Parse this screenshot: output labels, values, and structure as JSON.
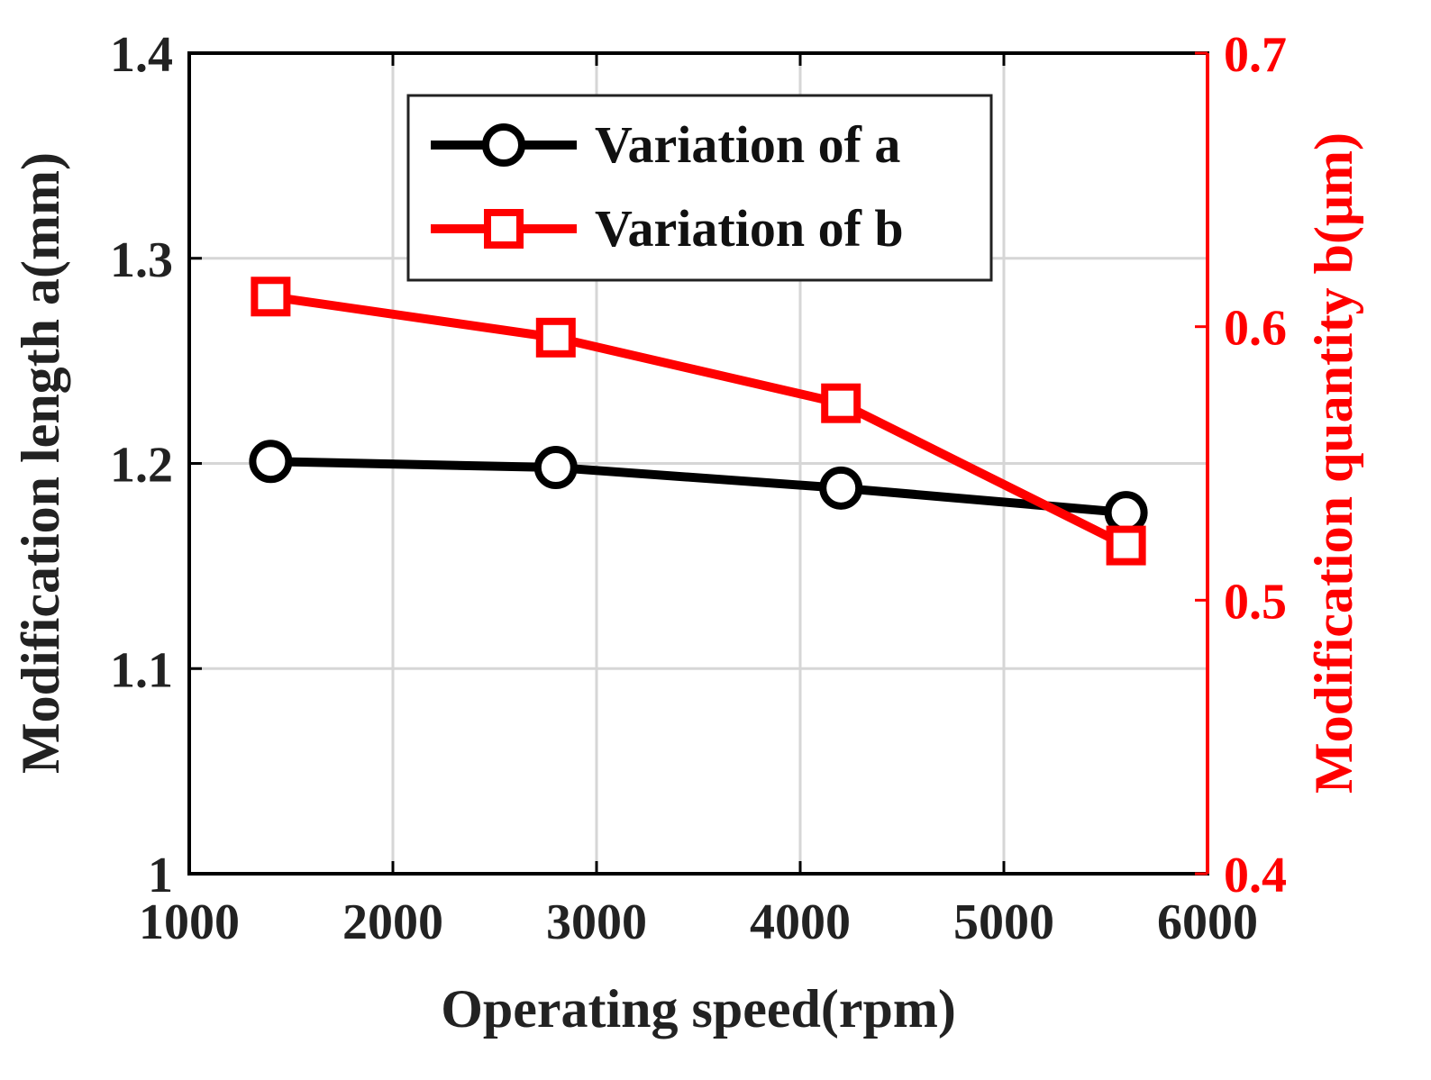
{
  "chart_data": {
    "type": "line",
    "xlabel": "Operating speed(rpm)",
    "ylabel_left": "Modification length a(mm)",
    "ylabel_right": "Modification quantity b(μm)",
    "xlim": [
      1000,
      6000
    ],
    "ylim_left": [
      1,
      1.4
    ],
    "ylim_right": [
      0.4,
      0.7
    ],
    "x_ticks": [
      1000,
      2000,
      3000,
      4000,
      5000,
      6000
    ],
    "x_tick_labels": [
      "1000",
      "2000",
      "3000",
      "4000",
      "5000",
      "6000"
    ],
    "y_left_ticks": [
      1,
      1.1,
      1.2,
      1.3,
      1.4
    ],
    "y_left_tick_labels": [
      "1",
      "1.1",
      "1.2",
      "1.3",
      "1.4"
    ],
    "y_right_ticks": [
      0.4,
      0.5,
      0.6,
      0.7
    ],
    "y_right_tick_labels": [
      "0.4",
      "0.5",
      "0.6",
      "0.7"
    ],
    "grid": true,
    "legend_position": "top-center",
    "series": [
      {
        "name": "Variation of a",
        "axis": "left",
        "marker": "circle",
        "color": "#000000",
        "x": [
          1400,
          2800,
          4200,
          5600
        ],
        "values": [
          1.201,
          1.198,
          1.188,
          1.176
        ]
      },
      {
        "name": "Variation of b",
        "axis": "right",
        "marker": "square",
        "color": "#ff0000",
        "x": [
          1400,
          2800,
          4200,
          5600
        ],
        "values": [
          0.611,
          0.596,
          0.572,
          0.52
        ]
      }
    ]
  }
}
